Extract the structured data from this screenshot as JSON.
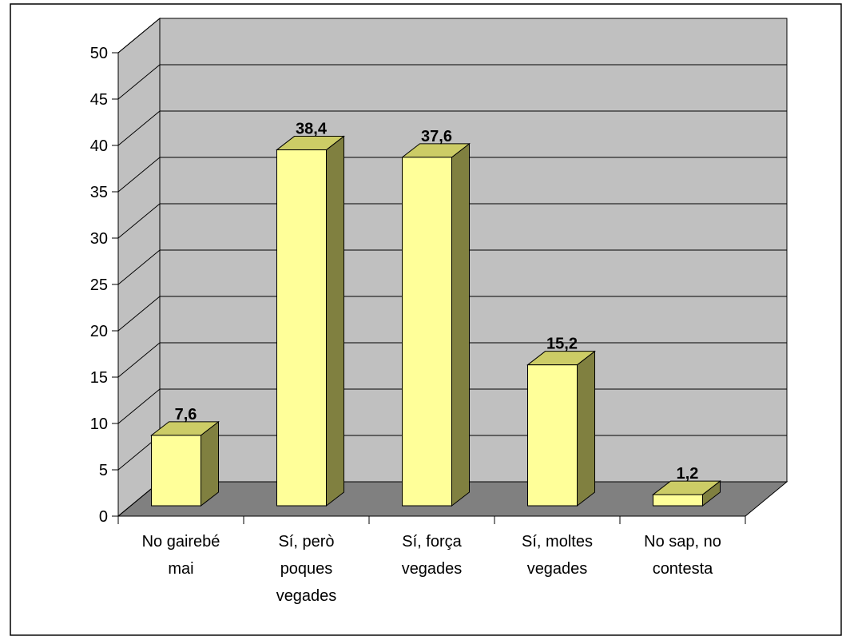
{
  "chart_data": {
    "type": "bar3d",
    "categories": [
      "No gairebé mai",
      "Sí, però poques vegades",
      "Sí, força vegades",
      "Sí, moltes vegades",
      "No sap, no contesta"
    ],
    "values": [
      7.6,
      38.4,
      37.6,
      15.2,
      1.2
    ],
    "value_labels": [
      "7,6",
      "38,4",
      "37,6",
      "15,2",
      "1,2"
    ],
    "color": "#ffff99",
    "ylim": [
      0,
      50
    ],
    "yticks": [
      0,
      5,
      10,
      15,
      20,
      25,
      30,
      35,
      40,
      45,
      50
    ],
    "grid": true
  }
}
